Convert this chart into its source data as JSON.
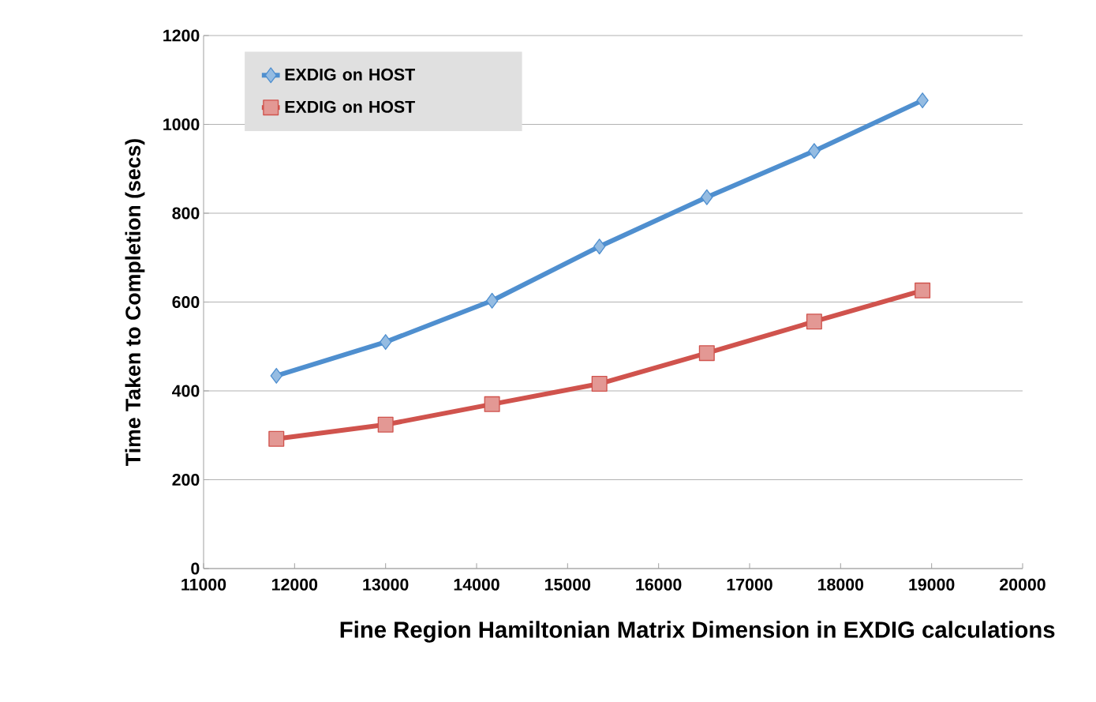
{
  "chart_data": {
    "type": "line",
    "xlabel": "Fine Region Hamiltonian Matrix Dimension in EXDIG calculations",
    "ylabel": "Time Taken to Completion (secs)",
    "xlim": [
      11000,
      20000
    ],
    "xticks": [
      11000,
      12000,
      13000,
      14000,
      15000,
      16000,
      17000,
      18000,
      19000,
      20000
    ],
    "ylim": [
      0,
      1200
    ],
    "yticks": [
      0,
      200,
      400,
      600,
      800,
      1000,
      1200
    ],
    "grid": "y",
    "legend": "top left",
    "x": [
      11800,
      13000,
      14170,
      15350,
      16530,
      17710,
      18900
    ],
    "series": [
      {
        "name": "EXDIG on HOST",
        "color": "#4f8fcf",
        "marker": "diamond",
        "values": [
          434,
          510,
          603,
          725,
          836,
          940,
          1054
        ]
      },
      {
        "name": "EXDIG on HOST",
        "color": "#d0534d",
        "marker": "square",
        "values": [
          292,
          324,
          370,
          416,
          485,
          556,
          626
        ]
      }
    ]
  }
}
